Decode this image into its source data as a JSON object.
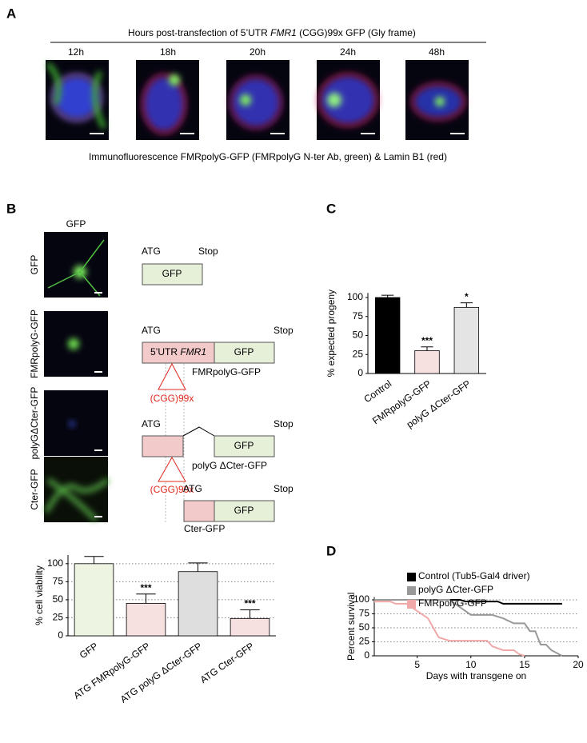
{
  "panel_a": {
    "label": "A",
    "header": [
      "Hours post-transfection of 5’UTR ",
      "FMR1",
      " (CGG)99x GFP (Gly frame)"
    ],
    "timepoints": [
      "12h",
      "18h",
      "20h",
      "24h",
      "48h"
    ],
    "caption": "Immunofluorescence FMRpolyG-GFP (FMRpolyG N-ter Ab, green) & Lamin B1 (red)"
  },
  "panel_b": {
    "label": "B",
    "column_header": "GFP",
    "rows": [
      "GFP",
      "FMRpolyG-GFP",
      "polyGΔCter-GFP",
      "Cter-GFP"
    ],
    "constructs": [
      {
        "start": "ATG",
        "stop": "Stop",
        "gfp": "GFP"
      },
      {
        "start": "ATG",
        "stop": "Stop",
        "utr": [
          "5’UTR ",
          "FMR1"
        ],
        "gfp": "GFP",
        "repeat": "(CGG)99x",
        "name": "FMRpolyG-GFP"
      },
      {
        "start": "ATG",
        "stop": "Stop",
        "gfp": "GFP",
        "repeat": "(CGG)99x",
        "name": "polyG ΔCter-GFP"
      },
      {
        "start": "ATG",
        "stop": "Stop",
        "gfp": "GFP",
        "name": "Cter-GFP"
      }
    ]
  },
  "chart_data": [
    {
      "type": "bar",
      "ylabel": "% cell viability",
      "categories": [
        "GFP",
        "ATG FMRpolyG-GFP",
        "ATG polyG ΔCter-GFP",
        "ATG Cter-GFP"
      ],
      "values": [
        100,
        45,
        89,
        24
      ],
      "errors": [
        10,
        13,
        12,
        12
      ],
      "annotations": [
        null,
        "***",
        null,
        "***"
      ],
      "colors": [
        "#eef4e2",
        "#f7e0e0",
        "#dedede",
        "#f7e0e0"
      ],
      "ylim": [
        0,
        112
      ],
      "yticks": [
        0,
        25,
        50,
        75,
        100
      ],
      "grid": true
    },
    {
      "type": "bar",
      "panel": "C",
      "ylabel": "% expected progeny",
      "categories": [
        "Control",
        "FMRpolyG-GFP",
        "polyG ΔCter-GFP"
      ],
      "values": [
        100,
        30,
        87
      ],
      "errors": [
        3,
        5,
        6
      ],
      "annotations": [
        null,
        "***",
        "*"
      ],
      "colors": [
        "#000000",
        "#f7e0e0",
        "#e4e4e4"
      ],
      "ylim": [
        0,
        106
      ],
      "yticks": [
        0,
        25,
        50,
        75,
        100
      ],
      "grid": false
    },
    {
      "type": "line",
      "panel": "D",
      "xlabel": "Days with transgene on",
      "ylabel": "Percent survival",
      "xlim": [
        1,
        20
      ],
      "xticks": [
        5,
        10,
        15,
        20
      ],
      "ylim": [
        0,
        105
      ],
      "yticks": [
        0,
        25,
        50,
        75,
        100
      ],
      "grid": true,
      "series": [
        {
          "name": "Control (Tub5-Gal4 driver)",
          "color": "#000000",
          "x": [
            1,
            9,
            9.5,
            12.5,
            13,
            18.5
          ],
          "values": [
            100,
            100,
            97,
            97,
            93,
            93
          ]
        },
        {
          "name": "polyG ΔCter-GFP",
          "color": "#999999",
          "x": [
            1,
            8,
            9.5,
            10,
            12,
            13,
            14,
            15,
            15.5,
            16,
            16.5,
            17,
            17.5,
            18.5
          ],
          "values": [
            100,
            100,
            80,
            73,
            73,
            67,
            58,
            58,
            44,
            44,
            20,
            20,
            10,
            0
          ]
        },
        {
          "name": "FMRpolyG-GFP",
          "color": "#f0a8a8",
          "x": [
            1,
            2.5,
            3,
            4,
            5,
            6,
            7,
            8,
            11.5,
            12,
            13,
            14,
            14.5,
            15
          ],
          "values": [
            97,
            97,
            93,
            93,
            80,
            67,
            33,
            27,
            27,
            17,
            10,
            10,
            3,
            0
          ]
        }
      ],
      "legend": "top-left"
    }
  ]
}
